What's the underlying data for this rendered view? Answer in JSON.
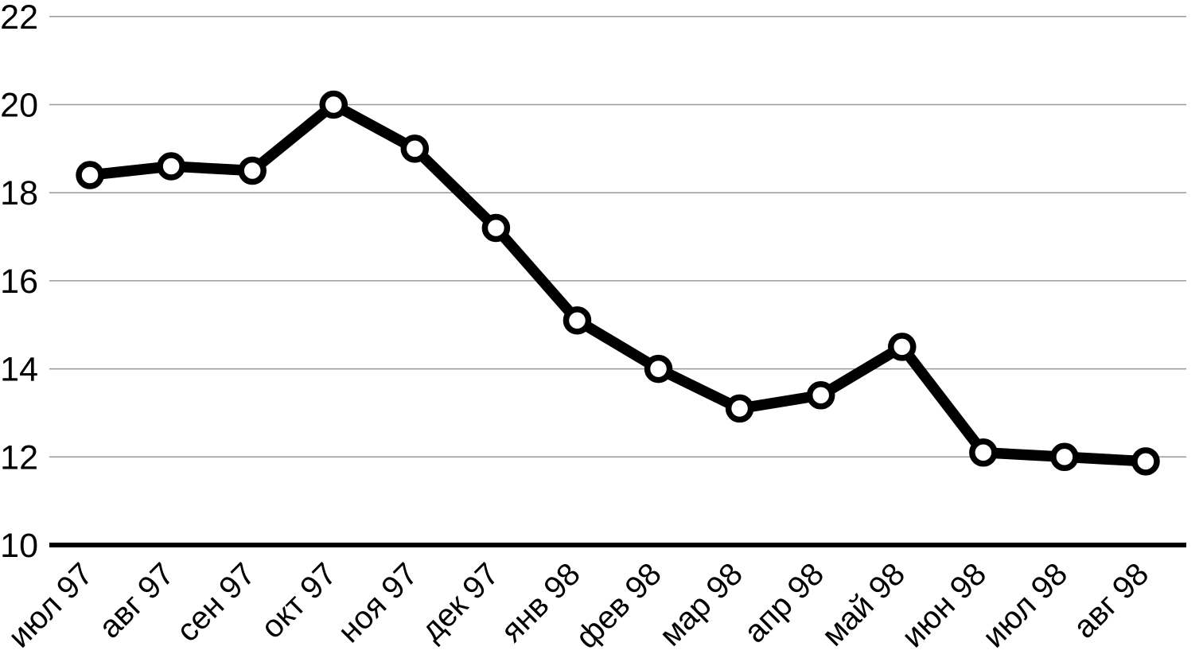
{
  "chart_data": {
    "type": "line",
    "title": "",
    "xlabel": "",
    "ylabel": "",
    "categories": [
      "июл 97",
      "авг 97",
      "сен 97",
      "окт 97",
      "ноя 97",
      "дек 97",
      "янв 98",
      "фев 98",
      "мар 98",
      "апр 98",
      "май 98",
      "июн 98",
      "июл 98",
      "авг 98"
    ],
    "values": [
      18.4,
      18.6,
      18.5,
      20.0,
      19.0,
      17.2,
      15.1,
      14.0,
      13.1,
      13.4,
      14.5,
      12.1,
      12.0,
      11.9
    ],
    "ylim": [
      10,
      22
    ],
    "yticks": [
      10,
      12,
      14,
      16,
      18,
      20,
      22
    ],
    "ytick_labels": [
      "10",
      "12",
      "14",
      "16",
      "18",
      "20",
      "22"
    ],
    "grid": true,
    "legend_position": "none",
    "colors": {
      "line": "#000000",
      "marker_fill": "#ffffff",
      "marker_stroke": "#000000",
      "gridline": "#999999",
      "axis_line": "#000000",
      "text": "#000000",
      "background": "#ffffff"
    }
  }
}
